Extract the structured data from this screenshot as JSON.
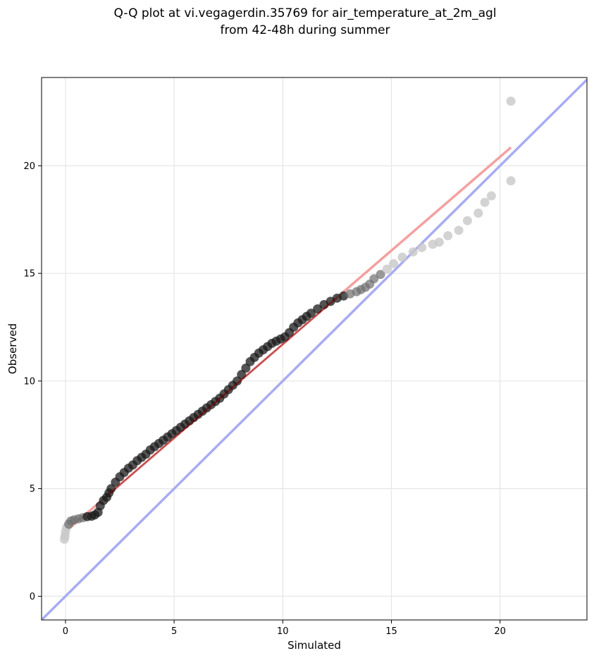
{
  "chart_data": {
    "type": "scatter",
    "title": "Q-Q plot at vi.vegagerdin.35769 for air_temperature_at_2m_agl",
    "subtitle": "from 42-48h during summer",
    "xlabel": "Simulated",
    "ylabel": "Observed",
    "xlim": [
      -1.1,
      24.0
    ],
    "ylim": [
      -1.1,
      24.1
    ],
    "xticks": [
      0,
      5,
      10,
      15,
      20
    ],
    "yticks": [
      0,
      5,
      10,
      15,
      20
    ],
    "grid": true,
    "colors": {
      "points_dense": "#1a1a1a",
      "points_tail": "#c8c8c8",
      "fit_line": "#f4a0a0",
      "fit_line_dense": "#8b0000",
      "identity_line": "#a8acf2"
    },
    "identity_line": {
      "x": [
        -1.1,
        24.0
      ],
      "y": [
        -1.1,
        24.0
      ]
    },
    "fit_line": {
      "x": [
        0,
        20.5
      ],
      "y": [
        3.0,
        20.85
      ]
    },
    "quantiles": {
      "x": [
        -0.05,
        -0.02,
        0.0,
        0.05,
        0.15,
        0.25,
        0.4,
        0.6,
        0.8,
        1.0,
        1.2,
        1.35,
        1.5,
        1.6,
        1.75,
        1.9,
        2.0,
        2.1,
        2.3,
        2.5,
        2.7,
        2.9,
        3.1,
        3.3,
        3.5,
        3.7,
        3.9,
        4.1,
        4.3,
        4.5,
        4.7,
        4.9,
        5.1,
        5.3,
        5.5,
        5.7,
        5.9,
        6.1,
        6.3,
        6.5,
        6.7,
        6.9,
        7.1,
        7.3,
        7.5,
        7.7,
        7.9,
        8.1,
        8.3,
        8.5,
        8.7,
        8.9,
        9.1,
        9.3,
        9.5,
        9.7,
        9.9,
        10.1,
        10.3,
        10.5,
        10.7,
        10.9,
        11.1,
        11.3,
        11.6,
        11.9,
        12.2,
        12.5,
        12.8,
        13.1,
        13.4,
        13.6,
        13.8,
        14.0,
        14.2,
        14.5,
        14.8,
        15.1,
        15.5,
        16.0,
        16.4,
        16.9,
        17.2,
        17.6,
        18.1,
        18.5,
        19.0,
        19.3,
        19.6,
        20.5
      ],
      "y": [
        2.65,
        2.8,
        3.0,
        3.2,
        3.35,
        3.5,
        3.55,
        3.6,
        3.65,
        3.7,
        3.72,
        3.78,
        3.9,
        4.2,
        4.45,
        4.6,
        4.8,
        5.0,
        5.3,
        5.55,
        5.75,
        5.95,
        6.1,
        6.3,
        6.45,
        6.6,
        6.8,
        6.95,
        7.1,
        7.25,
        7.4,
        7.55,
        7.7,
        7.85,
        8.0,
        8.15,
        8.3,
        8.45,
        8.6,
        8.75,
        8.9,
        9.05,
        9.2,
        9.4,
        9.6,
        9.8,
        10.0,
        10.3,
        10.6,
        10.9,
        11.1,
        11.3,
        11.45,
        11.6,
        11.75,
        11.85,
        11.95,
        12.05,
        12.25,
        12.5,
        12.7,
        12.85,
        13.0,
        13.15,
        13.35,
        13.55,
        13.7,
        13.85,
        13.95,
        14.05,
        14.15,
        14.25,
        14.35,
        14.5,
        14.75,
        14.95,
        15.2,
        15.45,
        15.75,
        16.0,
        16.2,
        16.35,
        16.45,
        16.75,
        17.0,
        17.45,
        17.8,
        18.3,
        18.6,
        19.3
      ]
    },
    "outlier_point": {
      "x": 20.5,
      "y": 23.0
    }
  }
}
